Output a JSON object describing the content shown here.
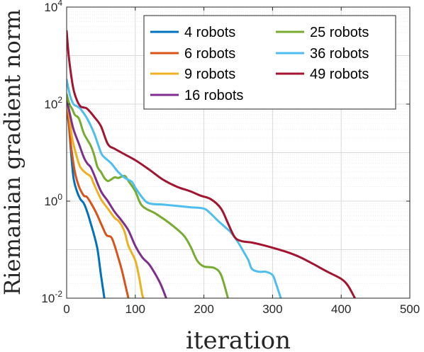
{
  "chart_data": {
    "type": "line",
    "title": "",
    "xlabel": "iteration",
    "ylabel": "Riemanian gradient norm",
    "xscale": "linear",
    "yscale": "log",
    "xlim": [
      0,
      500
    ],
    "ylim": [
      0.01,
      10000
    ],
    "xticks": [
      0,
      100,
      200,
      300,
      400,
      500
    ],
    "xtick_labels": [
      "0",
      "100",
      "200",
      "300",
      "400",
      "500"
    ],
    "yticks": [
      0.01,
      1,
      100,
      10000
    ],
    "ytick_labels": [
      {
        "base": "10",
        "exp": "-2"
      },
      {
        "base": "10",
        "exp": "0"
      },
      {
        "base": "10",
        "exp": "2"
      },
      {
        "base": "10",
        "exp": "4"
      }
    ],
    "grid": true,
    "minor_grid": true,
    "legend_position": "top-right",
    "legend_columns": 2,
    "series": [
      {
        "name": "4 robots",
        "color": "#0072BD",
        "points": [
          [
            0,
            80
          ],
          [
            3,
            40
          ],
          [
            6,
            12
          ],
          [
            10,
            3
          ],
          [
            15,
            1.6
          ],
          [
            20,
            1.1
          ],
          [
            25,
            0.9
          ],
          [
            30,
            0.6
          ],
          [
            35,
            0.35
          ],
          [
            40,
            0.2
          ],
          [
            45,
            0.1
          ],
          [
            50,
            0.03
          ],
          [
            55,
            0.01
          ]
        ]
      },
      {
        "name": "6 robots",
        "color": "#D95319",
        "points": [
          [
            0,
            90
          ],
          [
            3,
            45
          ],
          [
            6,
            15
          ],
          [
            12,
            4
          ],
          [
            18,
            2
          ],
          [
            25,
            1.3
          ],
          [
            30,
            1.2
          ],
          [
            40,
            0.7
          ],
          [
            45,
            0.5
          ],
          [
            52,
            0.3
          ],
          [
            58,
            0.2
          ],
          [
            65,
            0.18
          ],
          [
            70,
            0.12
          ],
          [
            75,
            0.07
          ],
          [
            80,
            0.04
          ],
          [
            85,
            0.02
          ],
          [
            90,
            0.01
          ]
        ]
      },
      {
        "name": "9 robots",
        "color": "#EDB120",
        "points": [
          [
            0,
            110
          ],
          [
            4,
            55
          ],
          [
            8,
            20
          ],
          [
            15,
            8
          ],
          [
            20,
            5
          ],
          [
            28,
            3.8
          ],
          [
            35,
            3.2
          ],
          [
            40,
            2.2
          ],
          [
            50,
            1.1
          ],
          [
            60,
            0.7
          ],
          [
            70,
            0.45
          ],
          [
            75,
            0.4
          ],
          [
            80,
            0.32
          ],
          [
            85,
            0.22
          ],
          [
            90,
            0.12
          ],
          [
            100,
            0.06
          ],
          [
            105,
            0.03
          ],
          [
            110,
            0.012
          ],
          [
            112,
            0.01
          ]
        ]
      },
      {
        "name": "16 robots",
        "color": "#7E2F8E",
        "points": [
          [
            0,
            130
          ],
          [
            5,
            60
          ],
          [
            10,
            30
          ],
          [
            18,
            15
          ],
          [
            25,
            8
          ],
          [
            30,
            6
          ],
          [
            35,
            5
          ],
          [
            40,
            3.5
          ],
          [
            50,
            1.6
          ],
          [
            60,
            1.0
          ],
          [
            70,
            0.6
          ],
          [
            80,
            0.4
          ],
          [
            90,
            0.25
          ],
          [
            100,
            0.12
          ],
          [
            110,
            0.07
          ],
          [
            120,
            0.05
          ],
          [
            130,
            0.03
          ],
          [
            138,
            0.018
          ],
          [
            145,
            0.01
          ]
        ]
      },
      {
        "name": "25 robots",
        "color": "#77AC30",
        "points": [
          [
            0,
            160
          ],
          [
            4,
            100
          ],
          [
            8,
            80
          ],
          [
            12,
            60
          ],
          [
            18,
            50
          ],
          [
            25,
            25
          ],
          [
            35,
            14
          ],
          [
            40,
            9
          ],
          [
            45,
            5
          ],
          [
            50,
            4
          ],
          [
            55,
            3
          ],
          [
            60,
            2.6
          ],
          [
            65,
            2.8
          ],
          [
            70,
            3.1
          ],
          [
            75,
            3.0
          ],
          [
            80,
            3.2
          ],
          [
            85,
            3.3
          ],
          [
            90,
            2.6
          ],
          [
            100,
            1.6
          ],
          [
            110,
            0.8
          ],
          [
            130,
            0.55
          ],
          [
            150,
            0.35
          ],
          [
            170,
            0.2
          ],
          [
            180,
            0.12
          ],
          [
            190,
            0.06
          ],
          [
            200,
            0.045
          ],
          [
            215,
            0.042
          ],
          [
            225,
            0.03
          ],
          [
            235,
            0.01
          ]
        ]
      },
      {
        "name": "36 robots",
        "color": "#4DBEEE",
        "points": [
          [
            0,
            320
          ],
          [
            5,
            150
          ],
          [
            10,
            100
          ],
          [
            15,
            90
          ],
          [
            20,
            80
          ],
          [
            30,
            50
          ],
          [
            40,
            25
          ],
          [
            50,
            10
          ],
          [
            55,
            8
          ],
          [
            65,
            6
          ],
          [
            75,
            4
          ],
          [
            85,
            3
          ],
          [
            95,
            2.5
          ],
          [
            100,
            1.9
          ],
          [
            110,
            1.2
          ],
          [
            120,
            0.9
          ],
          [
            140,
            0.85
          ],
          [
            160,
            0.8
          ],
          [
            180,
            0.75
          ],
          [
            200,
            0.7
          ],
          [
            210,
            0.55
          ],
          [
            220,
            0.4
          ],
          [
            230,
            0.3
          ],
          [
            240,
            0.22
          ],
          [
            250,
            0.14
          ],
          [
            260,
            0.08
          ],
          [
            265,
            0.06
          ],
          [
            270,
            0.04
          ],
          [
            280,
            0.035
          ],
          [
            290,
            0.035
          ],
          [
            300,
            0.03
          ],
          [
            305,
            0.02
          ],
          [
            312,
            0.01
          ]
        ]
      },
      {
        "name": "49 robots",
        "color": "#A2142F",
        "points": [
          [
            0,
            3200
          ],
          [
            3,
            1000
          ],
          [
            6,
            450
          ],
          [
            10,
            200
          ],
          [
            15,
            120
          ],
          [
            20,
            90
          ],
          [
            25,
            85
          ],
          [
            30,
            80
          ],
          [
            40,
            55
          ],
          [
            50,
            35
          ],
          [
            60,
            15
          ],
          [
            70,
            12
          ],
          [
            80,
            10
          ],
          [
            100,
            7
          ],
          [
            120,
            4.5
          ],
          [
            140,
            2.8
          ],
          [
            160,
            2.0
          ],
          [
            180,
            1.6
          ],
          [
            195,
            1.3
          ],
          [
            210,
            1.1
          ],
          [
            225,
            0.7
          ],
          [
            235,
            0.35
          ],
          [
            245,
            0.18
          ],
          [
            255,
            0.15
          ],
          [
            270,
            0.14
          ],
          [
            290,
            0.12
          ],
          [
            320,
            0.09
          ],
          [
            340,
            0.07
          ],
          [
            360,
            0.05
          ],
          [
            380,
            0.035
          ],
          [
            400,
            0.025
          ],
          [
            410,
            0.018
          ],
          [
            420,
            0.01
          ]
        ]
      }
    ]
  }
}
